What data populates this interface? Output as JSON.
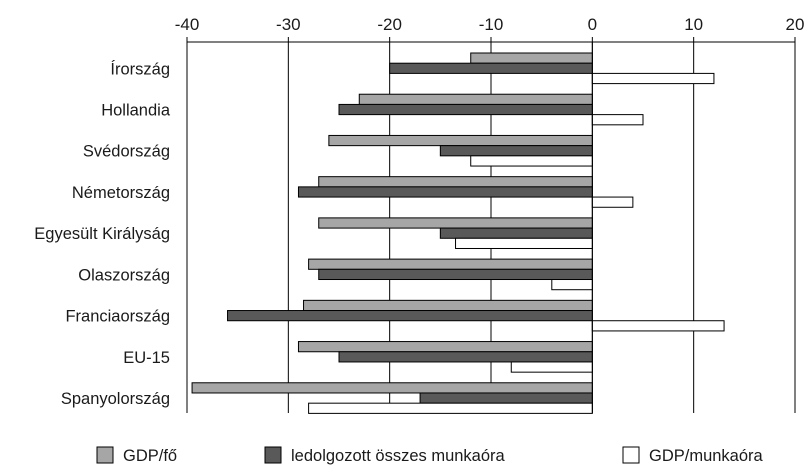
{
  "chart_data": {
    "type": "bar",
    "orientation": "horizontal",
    "title": "",
    "xlabel": "",
    "ylabel": "",
    "xlim": [
      -40,
      20
    ],
    "xticks": [
      -40,
      -30,
      -20,
      -10,
      0,
      10,
      20
    ],
    "xtick_labels": [
      "-40",
      "-30",
      "-20",
      "-10",
      "0",
      "10",
      "20"
    ],
    "x_axis_position": "top",
    "grid": "vertical",
    "legend_position": "bottom",
    "categories": [
      "Írország",
      "Hollandia",
      "Svédország",
      "Németország",
      "Egyesült Királyság",
      "Olaszország",
      "Franciaország",
      "EU-15",
      "Spanyolország"
    ],
    "series": [
      {
        "name": "GDP/fő",
        "color": "#a6a6a6",
        "values": [
          -12,
          -23,
          -26,
          -27,
          -27,
          -28,
          -28.5,
          -29,
          -39.5
        ]
      },
      {
        "name": "ledolgozott összes munkaóra",
        "color": "#595959",
        "values": [
          -20,
          -25,
          -15,
          -29,
          -15,
          -27,
          -36,
          -25,
          -17
        ]
      },
      {
        "name": "GDP/munkaóra",
        "color": "#ffffff",
        "values": [
          12,
          5,
          -12,
          4,
          -13.5,
          -4,
          13,
          -8,
          -28
        ]
      }
    ]
  }
}
